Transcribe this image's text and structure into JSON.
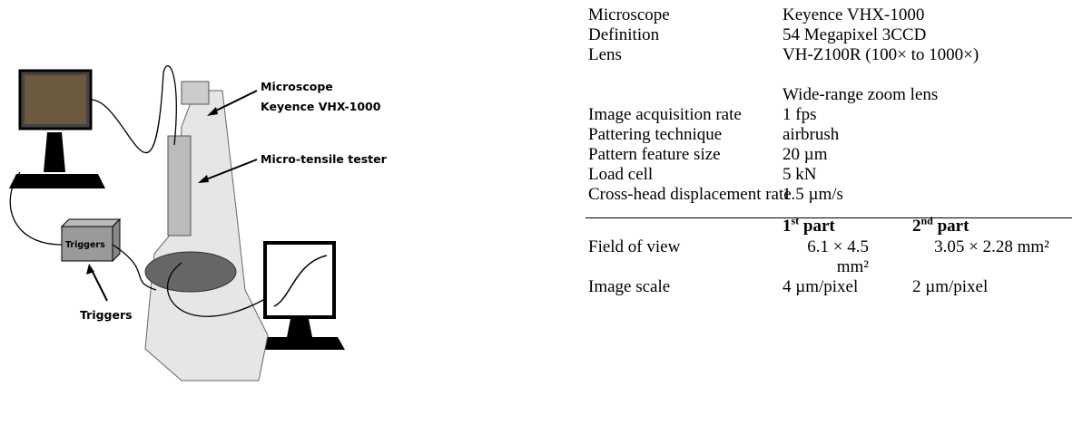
{
  "figure": {
    "labels": {
      "microscope": "Microscope",
      "microscope_model": "Keyence VHX-1000",
      "tester": "Micro-tensile tester",
      "triggers_box": "Triggers",
      "triggers": "Triggers"
    }
  },
  "table": {
    "rows": [
      [
        "Microscope",
        "Keyence VHX-1000"
      ],
      [
        "Definition",
        "54 Megapixel 3CCD"
      ],
      [
        "Lens",
        "VH-Z100R (100× to 1000×)"
      ],
      [
        "",
        "Wide-range zoom lens"
      ],
      [
        "Image acquisition rate",
        "1 fps"
      ],
      [
        "Pattering technique",
        "airbrush"
      ],
      [
        "Pattern feature size",
        "20 µm"
      ],
      [
        "Load cell",
        "5 kN"
      ],
      [
        "Cross-head displacement rate",
        "1.5 µm/s"
      ]
    ],
    "header": [
      {
        "number": "1",
        "suffix": "st",
        "text": "part"
      },
      {
        "number": "2",
        "suffix": "nd",
        "text": "part"
      }
    ],
    "parts_rows": [
      [
        "Field of view",
        "6.1 × 4.5 mm²",
        "3.05 × 2.28 mm²"
      ],
      [
        "Image scale",
        "4 µm/pixel",
        "2 µm/pixel"
      ]
    ]
  }
}
